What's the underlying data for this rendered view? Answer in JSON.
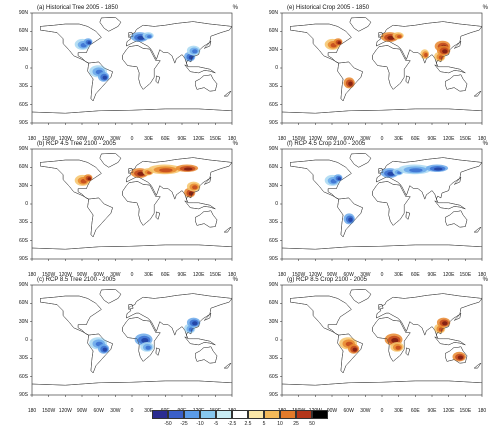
{
  "lat_labels": [
    "90N",
    "60N",
    "30N",
    "0",
    "30S",
    "60S",
    "90S"
  ],
  "lon_labels": [
    "180",
    "150W",
    "120W",
    "90W",
    "60W",
    "30W",
    "0",
    "30E",
    "60E",
    "90E",
    "120E",
    "150E",
    "180"
  ],
  "panels": [
    {
      "id": "a",
      "title": "(a) Historical Tree 2005 - 1850",
      "unit": "%",
      "palette": "cool",
      "regions": [
        "eastern-us",
        "southeast-asia",
        "amazon",
        "europe"
      ]
    },
    {
      "id": "e",
      "title": "(e) Historical Crop 2005 - 1850",
      "unit": "%",
      "palette": "warm",
      "regions": [
        "eastern-us",
        "europe",
        "india",
        "china",
        "southeast-asia",
        "south-america"
      ]
    },
    {
      "id": "b",
      "title": "(b) RCP 4.5 Tree 2100 - 2005",
      "unit": "%",
      "palette": "warm",
      "regions": [
        "eastern-us",
        "europe",
        "russia",
        "southeast-asia"
      ]
    },
    {
      "id": "f",
      "title": "(f) RCP 4.5 Crop 2100 - 2005",
      "unit": "%",
      "palette": "cool",
      "regions": [
        "eastern-us",
        "europe",
        "russia",
        "south-america"
      ]
    },
    {
      "id": "c",
      "title": "(c) RCP 8.5 Tree 2100 - 2005",
      "unit": "%",
      "palette": "cool",
      "regions": [
        "amazon",
        "central-africa",
        "southeast-asia"
      ]
    },
    {
      "id": "g",
      "title": "(g) RCP 8.5 Crop 2100 - 2005",
      "unit": "%",
      "palette": "warm",
      "regions": [
        "amazon",
        "central-africa",
        "southeast-asia",
        "australia"
      ]
    }
  ],
  "colorbar": {
    "ticks": [
      "-50",
      "-25",
      "-10",
      "-5",
      "-2.5",
      "2.5",
      "5",
      "10",
      "25",
      "50"
    ],
    "colors": [
      "#2b2c8f",
      "#3a5fc8",
      "#5b9be8",
      "#88c8ee",
      "#c8ecf4",
      "#ffffff",
      "#fbe7a8",
      "#f3b95a",
      "#e27a2a",
      "#b3361a",
      "#000000"
    ]
  }
}
